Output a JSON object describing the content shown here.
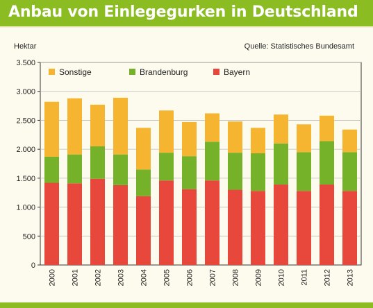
{
  "title": "Anbau von Einlegegurken in Deutschland",
  "unit": "Hektar",
  "source": "Quelle: Statistisches Bundesamt",
  "colors": {
    "header": "#8bbd22",
    "background": "#fdfbee",
    "sonstige": "#f6b531",
    "brandenburg": "#75b22a",
    "bayern": "#e8483b"
  },
  "chart_data": {
    "type": "bar",
    "stacked": true,
    "categories": [
      "2000",
      "2001",
      "2002",
      "2003",
      "2004",
      "2005",
      "2006",
      "2007",
      "2008",
      "2009",
      "2010",
      "2011",
      "2012",
      "2013"
    ],
    "series": [
      {
        "name": "Bayern",
        "color": "#e8483b",
        "values": [
          1420,
          1410,
          1490,
          1380,
          1190,
          1460,
          1310,
          1460,
          1300,
          1280,
          1390,
          1280,
          1390,
          1280
        ]
      },
      {
        "name": "Brandenburg",
        "color": "#75b22a",
        "values": [
          450,
          500,
          560,
          530,
          460,
          480,
          570,
          670,
          640,
          650,
          710,
          670,
          750,
          670
        ]
      },
      {
        "name": "Sonstige",
        "color": "#f6b531",
        "values": [
          950,
          970,
          720,
          980,
          720,
          730,
          590,
          490,
          540,
          440,
          500,
          480,
          440,
          390
        ]
      }
    ],
    "legend": [
      "Sonstige",
      "Brandenburg",
      "Bayern"
    ],
    "legend_position": "top-left",
    "ylim": [
      0,
      3500
    ],
    "yticks": [
      0,
      500,
      1000,
      1500,
      2000,
      2500,
      3000,
      3500
    ],
    "ytick_labels": [
      "0",
      "500",
      "1.000",
      "1.500",
      "2.000",
      "2.500",
      "3.000",
      "3.500"
    ],
    "grid": true
  }
}
